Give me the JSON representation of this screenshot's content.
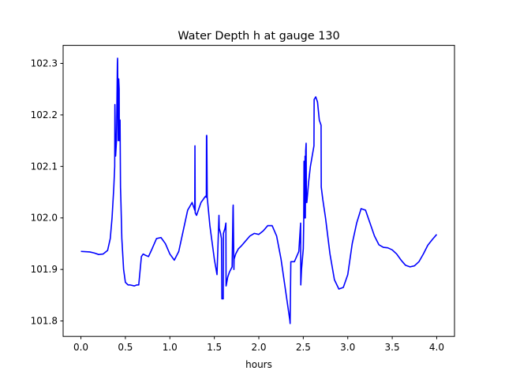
{
  "chart_data": {
    "type": "line",
    "title": "Water Depth h at gauge 130",
    "xlabel": "hours",
    "ylabel": "",
    "xlim": [
      -0.2,
      4.2
    ],
    "ylim": [
      101.77,
      102.335
    ],
    "xticks": [
      0.0,
      0.5,
      1.0,
      1.5,
      2.0,
      2.5,
      3.0,
      3.5,
      4.0
    ],
    "xtick_labels": [
      "0.0",
      "0.5",
      "1.0",
      "1.5",
      "2.0",
      "2.5",
      "3.0",
      "3.5",
      "4.0"
    ],
    "yticks": [
      101.8,
      101.9,
      102.0,
      102.1,
      102.2,
      102.3
    ],
    "ytick_labels": [
      "101.8",
      "101.9",
      "102.0",
      "102.1",
      "102.2",
      "102.3"
    ],
    "grid": false,
    "legend": "none",
    "series": [
      {
        "color": "#0000ff",
        "x": [
          0.0,
          0.1,
          0.15,
          0.2,
          0.25,
          0.3,
          0.33,
          0.35,
          0.37,
          0.38,
          0.382,
          0.39,
          0.4,
          0.41,
          0.412,
          0.418,
          0.42,
          0.425,
          0.43,
          0.432,
          0.44,
          0.445,
          0.45,
          0.46,
          0.48,
          0.5,
          0.53,
          0.55,
          0.6,
          0.63,
          0.65,
          0.68,
          0.7,
          0.72,
          0.76,
          0.8,
          0.85,
          0.9,
          0.95,
          1.0,
          1.05,
          1.1,
          1.15,
          1.2,
          1.25,
          1.28,
          1.282,
          1.285,
          1.3,
          1.35,
          1.4,
          1.41,
          1.412,
          1.415,
          1.42,
          1.45,
          1.5,
          1.53,
          1.552,
          1.555,
          1.57,
          1.58,
          1.585,
          1.59,
          1.6,
          1.602,
          1.62,
          1.63,
          1.632,
          1.64,
          1.65,
          1.67,
          1.7,
          1.71,
          1.712,
          1.72,
          1.722,
          1.74,
          1.77,
          1.8,
          1.85,
          1.9,
          1.95,
          2.0,
          2.05,
          2.1,
          2.15,
          2.2,
          2.25,
          2.3,
          2.35,
          2.352,
          2.36,
          2.4,
          2.45,
          2.47,
          2.472,
          2.48,
          2.5,
          2.505,
          2.508,
          2.515,
          2.52,
          2.523,
          2.527,
          2.532,
          2.535,
          2.54,
          2.56,
          2.58,
          2.6,
          2.62,
          2.622,
          2.64,
          2.66,
          2.68,
          2.7,
          2.702,
          2.72,
          2.75,
          2.8,
          2.85,
          2.9,
          2.95,
          3.0,
          3.05,
          3.1,
          3.15,
          3.2,
          3.25,
          3.3,
          3.35,
          3.4,
          3.45,
          3.5,
          3.55,
          3.6,
          3.65,
          3.7,
          3.75,
          3.8,
          3.85,
          3.9,
          3.95,
          4.0
        ],
        "y": [
          101.935,
          101.934,
          101.932,
          101.929,
          101.93,
          101.937,
          101.96,
          102.0,
          102.06,
          102.1,
          102.22,
          102.12,
          102.15,
          102.3,
          102.31,
          102.18,
          102.15,
          102.27,
          102.25,
          102.15,
          102.19,
          102.06,
          102.03,
          101.96,
          101.9,
          101.875,
          101.87,
          101.87,
          101.868,
          101.87,
          101.87,
          101.925,
          101.93,
          101.928,
          101.925,
          101.94,
          101.96,
          101.962,
          101.95,
          101.93,
          101.918,
          101.935,
          101.975,
          102.015,
          102.03,
          102.015,
          102.14,
          102.01,
          102.005,
          102.03,
          102.042,
          102.04,
          102.16,
          102.16,
          102.04,
          101.985,
          101.92,
          101.89,
          102.005,
          101.98,
          101.97,
          101.96,
          101.843,
          101.843,
          101.843,
          101.97,
          101.98,
          101.99,
          101.868,
          101.875,
          101.885,
          101.895,
          101.905,
          102.02,
          102.025,
          101.9,
          101.92,
          101.93,
          101.94,
          101.945,
          101.955,
          101.965,
          101.97,
          101.968,
          101.975,
          101.985,
          101.985,
          101.965,
          101.92,
          101.86,
          101.8,
          101.795,
          101.915,
          101.915,
          101.935,
          101.99,
          101.87,
          101.9,
          101.94,
          101.99,
          102.11,
          102.0,
          102.12,
          102.0,
          102.13,
          102.145,
          102.03,
          102.03,
          102.07,
          102.1,
          102.12,
          102.14,
          102.23,
          102.235,
          102.225,
          102.19,
          102.18,
          102.06,
          102.035,
          102.0,
          101.93,
          101.88,
          101.862,
          101.865,
          101.89,
          101.95,
          101.99,
          102.018,
          102.015,
          101.99,
          101.965,
          101.948,
          101.943,
          101.942,
          101.938,
          101.93,
          101.918,
          101.908,
          101.905,
          101.907,
          101.915,
          101.93,
          101.947,
          101.958,
          101.968
        ]
      }
    ]
  }
}
